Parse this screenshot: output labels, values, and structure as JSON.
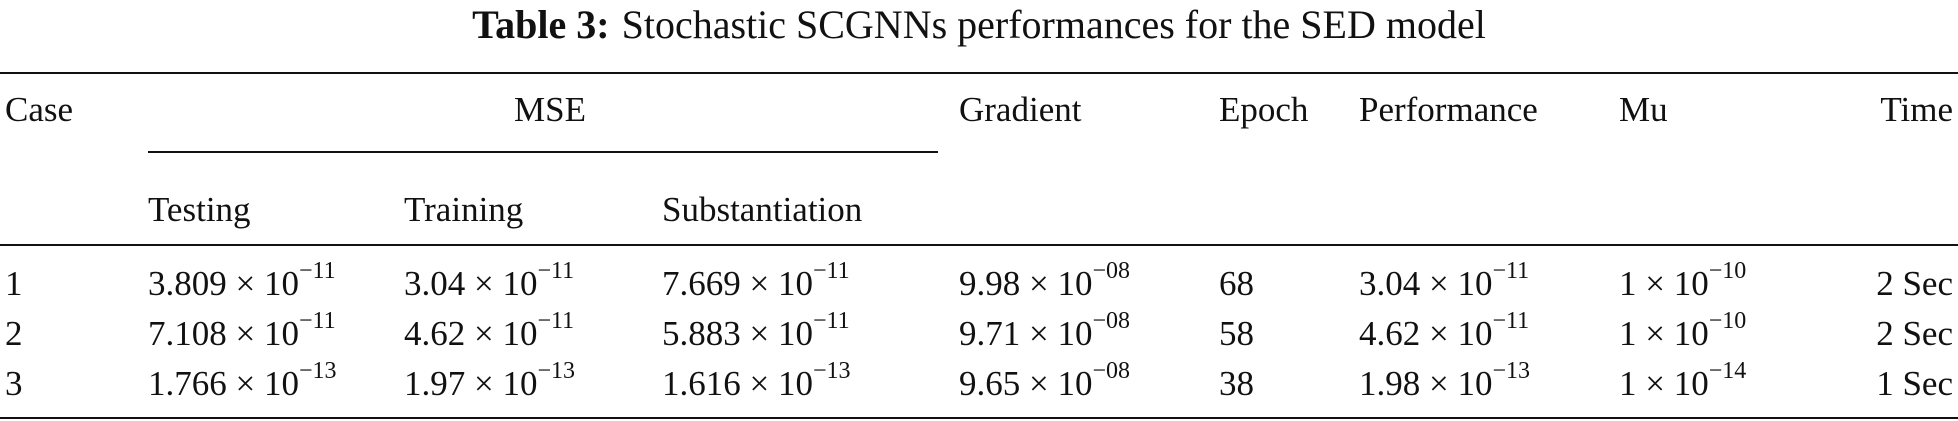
{
  "caption": {
    "label": "Table 3:",
    "text": "Stochastic SCGNNs performances for the SED model"
  },
  "table": {
    "header": [
      "Case",
      "MSE",
      "Gradient",
      "Epoch",
      "Performance",
      "Mu",
      "Time"
    ],
    "subheader": [
      "Testing",
      "Training",
      "Substantiation"
    ],
    "rows": [
      [
        "1",
        {
          "base": "3.809 × 10",
          "exp": "−11"
        },
        {
          "base": "3.04 × 10",
          "exp": "−11"
        },
        {
          "base": "7.669 × 10",
          "exp": "−11"
        },
        {
          "base": "9.98 × 10",
          "exp": "−08"
        },
        "68",
        {
          "base": "3.04 × 10",
          "exp": "−11"
        },
        {
          "base": "1 × 10",
          "exp": "−10"
        },
        "2 Sec"
      ],
      [
        "2",
        {
          "base": "7.108 × 10",
          "exp": "−11"
        },
        {
          "base": "4.62 × 10",
          "exp": "−11"
        },
        {
          "base": "5.883 × 10",
          "exp": "−11"
        },
        {
          "base": "9.71 × 10",
          "exp": "−08"
        },
        "58",
        {
          "base": "4.62 × 10",
          "exp": "−11"
        },
        {
          "base": "1 × 10",
          "exp": "−10"
        },
        "2 Sec"
      ],
      [
        "3",
        {
          "base": "1.766 × 10",
          "exp": "−13"
        },
        {
          "base": "1.97 × 10",
          "exp": "−13"
        },
        {
          "base": "1.616 × 10",
          "exp": "−13"
        },
        {
          "base": "9.65 × 10",
          "exp": "−08"
        },
        "38",
        {
          "base": "1.98 × 10",
          "exp": "−13"
        },
        {
          "base": "1 × 10",
          "exp": "−14"
        },
        "1 Sec"
      ]
    ]
  }
}
